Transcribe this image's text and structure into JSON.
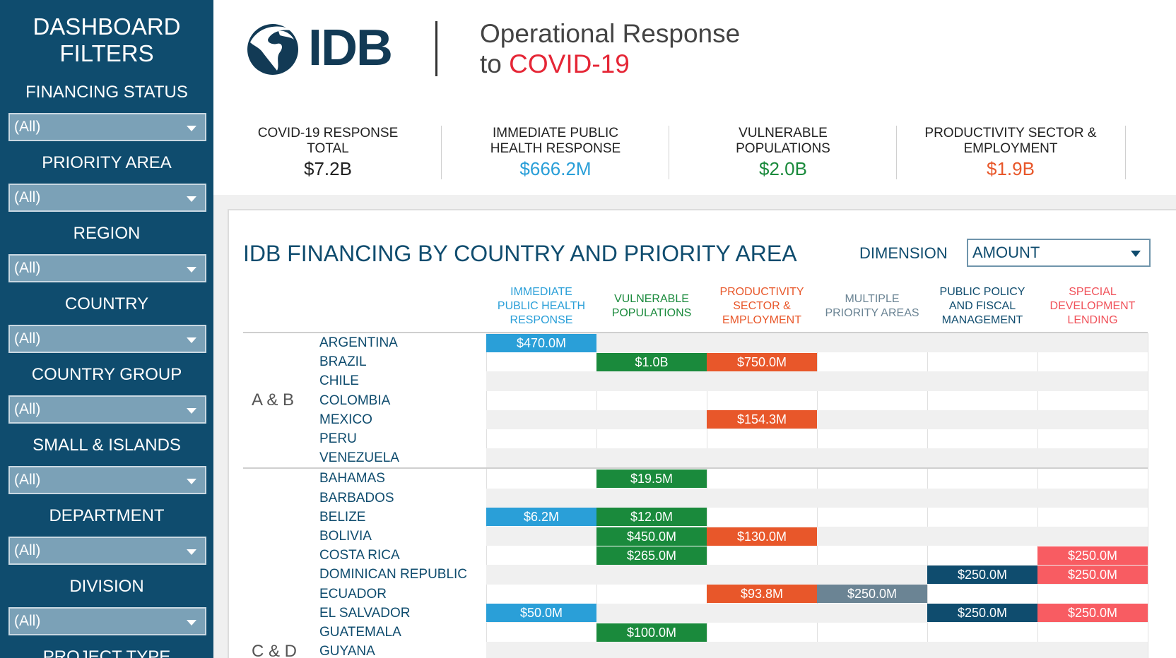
{
  "sidebar": {
    "title_line1": "DASHBOARD",
    "title_line2": "FILTERS",
    "filters": [
      {
        "label": "FINANCING STATUS",
        "value": "(All)"
      },
      {
        "label": "PRIORITY AREA",
        "value": "(All)"
      },
      {
        "label": "REGION",
        "value": "(All)"
      },
      {
        "label": "COUNTRY",
        "value": "(All)"
      },
      {
        "label": "COUNTRY GROUP",
        "value": "(All)"
      },
      {
        "label": "SMALL & ISLANDS",
        "value": "(All)"
      },
      {
        "label": "DEPARTMENT",
        "value": "(All)"
      },
      {
        "label": "DIVISION",
        "value": "(All)"
      },
      {
        "label": "PROJECT TYPE",
        "value": ""
      }
    ]
  },
  "header": {
    "logo_text": "IDB",
    "title_line1": "Operational Response",
    "title_line2_prefix": "to ",
    "title_line2_highlight": "COVID-19"
  },
  "kpis": [
    {
      "label_line1": "COVID-19 RESPONSE",
      "label_line2": "TOTAL",
      "value": "$7.2B",
      "color": "#222222"
    },
    {
      "label_line1": "IMMEDIATE PUBLIC",
      "label_line2": "HEALTH RESPONSE",
      "value": "$666.2M",
      "color": "#2a9fd8"
    },
    {
      "label_line1": "VULNERABLE",
      "label_line2": "POPULATIONS",
      "value": "$2.0B",
      "color": "#1a8a3c"
    },
    {
      "label_line1": "PRODUCTIVITY SECTOR &",
      "label_line2": "EMPLOYMENT",
      "value": "$1.9B",
      "color": "#e8572a"
    }
  ],
  "main": {
    "title": "IDB FINANCING BY COUNTRY AND PRIORITY AREA",
    "dimension_label": "DIMENSION",
    "dimension_value": "AMOUNT"
  },
  "columns": [
    {
      "line1": "IMMEDIATE",
      "line2": "PUBLIC HEALTH",
      "line3": "RESPONSE",
      "color": "#2a9fd8"
    },
    {
      "line1": "VULNERABLE",
      "line2": "POPULATIONS",
      "line3": "",
      "color": "#1a8a3c"
    },
    {
      "line1": "PRODUCTIVITY",
      "line2": "SECTOR &",
      "line3": "EMPLOYMENT",
      "color": "#e8572a"
    },
    {
      "line1": "MULTIPLE",
      "line2": "PRIORITY AREAS",
      "line3": "",
      "color": "#6b8494"
    },
    {
      "line1": "PUBLIC POLICY",
      "line2": "AND FISCAL",
      "line3": "MANAGEMENT",
      "color": "#0f4c6e"
    },
    {
      "line1": "SPECIAL",
      "line2": "DEVELOPMENT",
      "line3": "LENDING",
      "color": "#f0525a"
    }
  ],
  "cell_colors": [
    "#2a9fd8",
    "#1a8a3c",
    "#e8572a",
    "#6b8494",
    "#0f4c6e",
    "#f85c62"
  ],
  "groups": [
    {
      "name": "A & B",
      "countries": [
        {
          "name": "ARGENTINA",
          "values": [
            "$470.0M",
            "",
            "",
            "",
            "",
            ""
          ]
        },
        {
          "name": "BRAZIL",
          "values": [
            "",
            "$1.0B",
            "$750.0M",
            "",
            "",
            ""
          ]
        },
        {
          "name": "CHILE",
          "values": [
            "",
            "",
            "",
            "",
            "",
            ""
          ]
        },
        {
          "name": "COLOMBIA",
          "values": [
            "",
            "",
            "",
            "",
            "",
            ""
          ]
        },
        {
          "name": "MEXICO",
          "values": [
            "",
            "",
            "$154.3M",
            "",
            "",
            ""
          ]
        },
        {
          "name": "PERU",
          "values": [
            "",
            "",
            "",
            "",
            "",
            ""
          ]
        },
        {
          "name": "VENEZUELA",
          "values": [
            "",
            "",
            "",
            "",
            "",
            ""
          ]
        }
      ]
    },
    {
      "name": "C & D",
      "countries": [
        {
          "name": "BAHAMAS",
          "values": [
            "",
            "$19.5M",
            "",
            "",
            "",
            ""
          ]
        },
        {
          "name": "BARBADOS",
          "values": [
            "",
            "",
            "",
            "",
            "",
            ""
          ]
        },
        {
          "name": "BELIZE",
          "values": [
            "$6.2M",
            "$12.0M",
            "",
            "",
            "",
            ""
          ]
        },
        {
          "name": "BOLIVIA",
          "values": [
            "",
            "$450.0M",
            "$130.0M",
            "",
            "",
            ""
          ]
        },
        {
          "name": "COSTA RICA",
          "values": [
            "",
            "$265.0M",
            "",
            "",
            "",
            "$250.0M"
          ]
        },
        {
          "name": "DOMINICAN REPUBLIC",
          "values": [
            "",
            "",
            "",
            "",
            "$250.0M",
            "$250.0M"
          ]
        },
        {
          "name": "ECUADOR",
          "values": [
            "",
            "",
            "$93.8M",
            "$250.0M",
            "",
            ""
          ]
        },
        {
          "name": "EL SALVADOR",
          "values": [
            "$50.0M",
            "",
            "",
            "",
            "$250.0M",
            "$250.0M"
          ]
        },
        {
          "name": "GUATEMALA",
          "values": [
            "",
            "$100.0M",
            "",
            "",
            "",
            ""
          ]
        },
        {
          "name": "GUYANA",
          "values": [
            "",
            "",
            "",
            "",
            "",
            ""
          ]
        }
      ]
    }
  ]
}
